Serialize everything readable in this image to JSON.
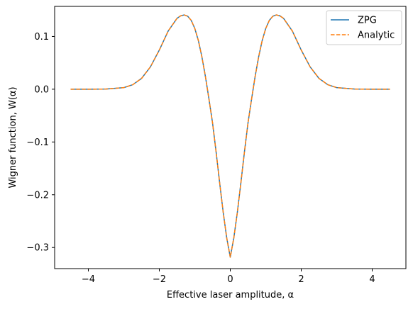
{
  "chart_data": {
    "type": "line",
    "xlabel": "Effective laser amplitude, α",
    "ylabel": "Wigner function, W(α)",
    "xlim": [
      -4.95,
      4.95
    ],
    "ylim": [
      -0.34,
      0.157
    ],
    "xticks": [
      -4,
      -2,
      0,
      2,
      4
    ],
    "yticks": [
      -0.3,
      -0.2,
      -0.1,
      0.0,
      0.1
    ],
    "xtick_labels": [
      "−4",
      "−2",
      "0",
      "2",
      "4"
    ],
    "ytick_labels": [
      "−0.3",
      "−0.2",
      "−0.1",
      "0.0",
      "0.1"
    ],
    "grid": false,
    "legend_position": "top-right",
    "series": [
      {
        "name": "ZPG",
        "color": "#1f77b4",
        "style": "solid",
        "x": [
          -4.5,
          -4.0,
          -3.5,
          -3.0,
          -2.75,
          -2.5,
          -2.25,
          -2.0,
          -1.75,
          -1.5,
          -1.4,
          -1.3,
          -1.2,
          -1.1,
          -1.0,
          -0.9,
          -0.8,
          -0.7,
          -0.6,
          -0.5,
          -0.4,
          -0.3,
          -0.2,
          -0.1,
          0.0,
          0.1,
          0.2,
          0.3,
          0.4,
          0.5,
          0.6,
          0.7,
          0.8,
          0.9,
          1.0,
          1.1,
          1.2,
          1.3,
          1.4,
          1.5,
          1.75,
          2.0,
          2.25,
          2.5,
          2.75,
          3.0,
          3.5,
          4.0,
          4.5
        ],
        "y": [
          0.0,
          0.0,
          0.0003,
          0.003,
          0.0085,
          0.0205,
          0.0424,
          0.0742,
          0.1102,
          0.1344,
          0.139,
          0.1408,
          0.1384,
          0.1304,
          0.1152,
          0.0924,
          0.0615,
          0.0239,
          -0.0189,
          -0.0636,
          -0.1185,
          -0.1769,
          -0.233,
          -0.2819,
          -0.3183,
          -0.2819,
          -0.233,
          -0.1769,
          -0.1185,
          -0.0636,
          -0.0189,
          0.0239,
          0.0615,
          0.0924,
          0.1152,
          0.1304,
          0.1384,
          0.1408,
          0.139,
          0.1344,
          0.1102,
          0.0742,
          0.0424,
          0.0205,
          0.0085,
          0.003,
          0.0003,
          0.0,
          0.0
        ]
      },
      {
        "name": "Analytic",
        "color": "#ff7f0e",
        "style": "dashed",
        "x": [
          -4.5,
          -4.0,
          -3.5,
          -3.0,
          -2.75,
          -2.5,
          -2.25,
          -2.0,
          -1.75,
          -1.5,
          -1.4,
          -1.3,
          -1.2,
          -1.1,
          -1.0,
          -0.9,
          -0.8,
          -0.7,
          -0.6,
          -0.5,
          -0.4,
          -0.3,
          -0.2,
          -0.1,
          0.0,
          0.1,
          0.2,
          0.3,
          0.4,
          0.5,
          0.6,
          0.7,
          0.8,
          0.9,
          1.0,
          1.1,
          1.2,
          1.3,
          1.4,
          1.5,
          1.75,
          2.0,
          2.25,
          2.5,
          2.75,
          3.0,
          3.5,
          4.0,
          4.5
        ],
        "y": [
          0.0,
          0.0,
          0.0003,
          0.003,
          0.0085,
          0.0205,
          0.0424,
          0.0742,
          0.1102,
          0.1344,
          0.139,
          0.1408,
          0.1384,
          0.1304,
          0.1152,
          0.0924,
          0.0615,
          0.0239,
          -0.0189,
          -0.0636,
          -0.1185,
          -0.1769,
          -0.233,
          -0.2819,
          -0.3183,
          -0.2819,
          -0.233,
          -0.1769,
          -0.1185,
          -0.0636,
          -0.0189,
          0.0239,
          0.0615,
          0.0924,
          0.1152,
          0.1304,
          0.1384,
          0.1408,
          0.139,
          0.1344,
          0.1102,
          0.0742,
          0.0424,
          0.0205,
          0.0085,
          0.003,
          0.0003,
          0.0,
          0.0
        ]
      }
    ]
  }
}
